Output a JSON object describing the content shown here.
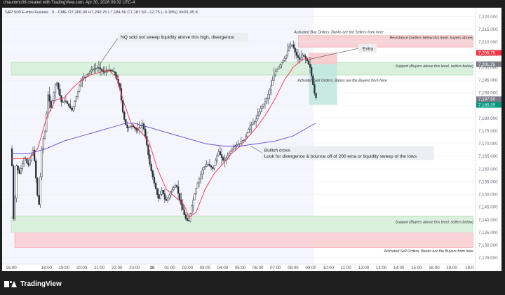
{
  "header": {
    "attribution": "chauntmc08 created with TradingView.com, Apr 30, 2026 09:32 UTC-4"
  },
  "brand": {
    "name": "TradingView"
  },
  "chart_data": {
    "type": "candlestick",
    "instrument_line": "S&P 500 E-mini Futures · 5 · CME  O7,200.00  H7,200.75  L7,184.50  C7,187.50  −12.75 (−0.18%)  Vol31.05 K",
    "y_ticks": [
      7125,
      7130,
      7135,
      7140,
      7145,
      7150,
      7155,
      7160,
      7165,
      7170,
      7175,
      7180,
      7185,
      7190,
      7195,
      7200,
      7205,
      7210,
      7215,
      7220
    ],
    "ylim": [
      7122.5,
      7223.5
    ],
    "x_ticks": [
      {
        "t": 0,
        "label": "16:00"
      },
      {
        "t": 2,
        "label": "18:00"
      },
      {
        "t": 3,
        "label": "19:00"
      },
      {
        "t": 4,
        "label": "20:00"
      },
      {
        "t": 5,
        "label": "21:00"
      },
      {
        "t": 6,
        "label": "22:00"
      },
      {
        "t": 7,
        "label": "23:00"
      },
      {
        "t": 8,
        "label": "30"
      },
      {
        "t": 9,
        "label": "01:00"
      },
      {
        "t": 10,
        "label": "02:00"
      },
      {
        "t": 11,
        "label": "03:00"
      },
      {
        "t": 12,
        "label": "04:00"
      },
      {
        "t": 13,
        "label": "05:00"
      },
      {
        "t": 14,
        "label": "06:00"
      },
      {
        "t": 15,
        "label": "07:00"
      },
      {
        "t": 16,
        "label": "08:00"
      },
      {
        "t": 17,
        "label": "09:00"
      },
      {
        "t": 18,
        "label": "10:00"
      },
      {
        "t": 19,
        "label": "11:00"
      },
      {
        "t": 20,
        "label": "12:00"
      },
      {
        "t": 21,
        "label": "13:00"
      },
      {
        "t": 22,
        "label": "14:00"
      },
      {
        "t": 23,
        "label": "15:00"
      },
      {
        "t": 24,
        "label": "16:00"
      },
      {
        "t": 25,
        "label": "18:00"
      },
      {
        "t": 26,
        "label": "19:0"
      }
    ],
    "price_path": [
      [
        0,
        7168
      ],
      [
        0.1,
        7160
      ],
      [
        0.2,
        7132
      ],
      [
        0.3,
        7162
      ],
      [
        0.5,
        7158
      ],
      [
        0.8,
        7165
      ],
      [
        1,
        7161
      ],
      [
        1.3,
        7168
      ],
      [
        1.6,
        7144
      ],
      [
        1.8,
        7170
      ],
      [
        2,
        7176
      ],
      [
        2.1,
        7190
      ],
      [
        2.3,
        7184
      ],
      [
        2.6,
        7195
      ],
      [
        2.9,
        7186
      ],
      [
        3.1,
        7187
      ],
      [
        3.5,
        7183
      ],
      [
        3.8,
        7190
      ],
      [
        4,
        7195
      ],
      [
        4.3,
        7197
      ],
      [
        4.6,
        7199
      ],
      [
        5,
        7200
      ],
      [
        5.3,
        7198
      ],
      [
        5.6,
        7199
      ],
      [
        5.9,
        7198
      ],
      [
        6.2,
        7192
      ],
      [
        6.4,
        7181
      ],
      [
        6.6,
        7176
      ],
      [
        6.9,
        7177
      ],
      [
        7.2,
        7175
      ],
      [
        7.5,
        7178
      ],
      [
        7.7,
        7171
      ],
      [
        7.9,
        7162
      ],
      [
        8.1,
        7156
      ],
      [
        8.4,
        7148
      ],
      [
        8.6,
        7152
      ],
      [
        8.8,
        7147
      ],
      [
        9.1,
        7151
      ],
      [
        9.4,
        7154
      ],
      [
        9.6,
        7148
      ],
      [
        9.9,
        7141
      ],
      [
        10.1,
        7139
      ],
      [
        10.3,
        7146
      ],
      [
        10.6,
        7154
      ],
      [
        10.9,
        7160
      ],
      [
        11.2,
        7162
      ],
      [
        11.5,
        7160
      ],
      [
        11.8,
        7167
      ],
      [
        12.1,
        7163
      ],
      [
        12.4,
        7166
      ],
      [
        12.7,
        7169
      ],
      [
        13,
        7170
      ],
      [
        13.3,
        7172
      ],
      [
        13.6,
        7177
      ],
      [
        13.9,
        7179
      ],
      [
        14.2,
        7184
      ],
      [
        14.5,
        7187
      ],
      [
        14.8,
        7193
      ],
      [
        15,
        7198
      ],
      [
        15.3,
        7201
      ],
      [
        15.6,
        7204
      ],
      [
        15.8,
        7208
      ],
      [
        16.0,
        7209
      ],
      [
        16.2,
        7205
      ],
      [
        16.4,
        7203
      ],
      [
        16.6,
        7205
      ],
      [
        16.8,
        7203
      ],
      [
        17.0,
        7200
      ],
      [
        17.3,
        7188
      ]
    ],
    "series": [
      {
        "name": "EMA",
        "color": "#f23645",
        "points": [
          [
            0,
            7164
          ],
          [
            1,
            7164
          ],
          [
            1.5,
            7168
          ],
          [
            2,
            7180
          ],
          [
            2.5,
            7187
          ],
          [
            3,
            7188
          ],
          [
            3.5,
            7192
          ],
          [
            4,
            7195
          ],
          [
            4.5,
            7197
          ],
          [
            5,
            7198
          ],
          [
            5.5,
            7199
          ],
          [
            6,
            7196
          ],
          [
            6.4,
            7186
          ],
          [
            6.8,
            7178
          ],
          [
            7.3,
            7175
          ],
          [
            7.8,
            7171
          ],
          [
            8.3,
            7160
          ],
          [
            8.8,
            7152
          ],
          [
            9.3,
            7149
          ],
          [
            9.8,
            7146
          ],
          [
            10.1,
            7141
          ],
          [
            10.5,
            7143
          ],
          [
            11,
            7152
          ],
          [
            11.5,
            7158
          ],
          [
            12,
            7162
          ],
          [
            12.5,
            7166
          ],
          [
            13,
            7169
          ],
          [
            13.5,
            7173
          ],
          [
            14,
            7177
          ],
          [
            14.5,
            7182
          ],
          [
            15,
            7188
          ],
          [
            15.5,
            7195
          ],
          [
            16,
            7200
          ],
          [
            16.5,
            7203
          ],
          [
            17,
            7204
          ]
        ]
      },
      {
        "name": "200 EMA",
        "color": "#5c49d9",
        "points": [
          [
            0,
            7166
          ],
          [
            1,
            7166
          ],
          [
            2,
            7168
          ],
          [
            3,
            7171
          ],
          [
            4,
            7173
          ],
          [
            5,
            7175
          ],
          [
            6,
            7177
          ],
          [
            6.5,
            7178
          ],
          [
            7,
            7178
          ],
          [
            8,
            7176
          ],
          [
            9,
            7174
          ],
          [
            10,
            7172
          ],
          [
            11,
            7170
          ],
          [
            12,
            7169
          ],
          [
            13,
            7169
          ],
          [
            14,
            7170
          ],
          [
            15,
            7171
          ],
          [
            16,
            7173
          ],
          [
            17,
            7177
          ],
          [
            17.3,
            7178
          ]
        ]
      }
    ],
    "zones": [
      {
        "kind": "resistance",
        "from": 7208,
        "to": 7212.5,
        "t0": 16.3,
        "t1": 26.2,
        "color": "#f8d2d4",
        "label": "Resistance  (Sellers below this level, buyers above)",
        "sublabel": "Activated Buy Orders, Banks are the Sellers from here"
      },
      {
        "kind": "support",
        "from": 7197,
        "to": 7202,
        "t0": 0,
        "t1": 26.2,
        "color": "#d9f0dc",
        "label": "Support  (Buyers above this level, sellers below)",
        "sublabel": "Activated Sell Orders, Banks are the Buyers from here"
      },
      {
        "kind": "support",
        "from": 7135,
        "to": 7141.5,
        "t0": 0,
        "t1": 26.2,
        "color": "#d9f0dc",
        "label": "Support  (Buyers above this level, sellers below)"
      },
      {
        "kind": "resistance",
        "from": 7129,
        "to": 7135,
        "t0": 0.2,
        "t1": 26.2,
        "color": "#f8d2d4",
        "label": "Activated Sell Orders, Banks are the Buyers from here"
      }
    ],
    "annotations": [
      {
        "text": "NQ sdid not sweep liquidity above this high, divergence",
        "at_t": 5,
        "at_y": 7201
      },
      {
        "text": "Entry",
        "at_t": 16.8,
        "at_y": 7203
      },
      {
        "text": "Bullish cross",
        "at_t": 13.6,
        "at_y": 7169
      },
      {
        "text": "Look for divergence & bounce off of 200 ema or liquidity sweep of the lows",
        "at_t": 13.6,
        "at_y": 7169
      }
    ],
    "position": {
      "entry": 7201.25,
      "stop": 7205.75,
      "target": 7185.25,
      "t0": 16.9,
      "t1": 18.5
    },
    "price_labels": [
      {
        "value": "7,205.75",
        "color": "#f23645"
      },
      {
        "value": "7,201.25",
        "color": "#787b86"
      },
      {
        "value": "7,187.50",
        "color": "#787b86",
        "sub": "02:12"
      },
      {
        "value": "7,185.25",
        "color": "#089981"
      }
    ],
    "colors": {
      "up": "#26a69a",
      "down": "#2a2e39",
      "wick": "#2a2e39",
      "axis_text": "#555",
      "grid": "#f0f0f0"
    }
  }
}
